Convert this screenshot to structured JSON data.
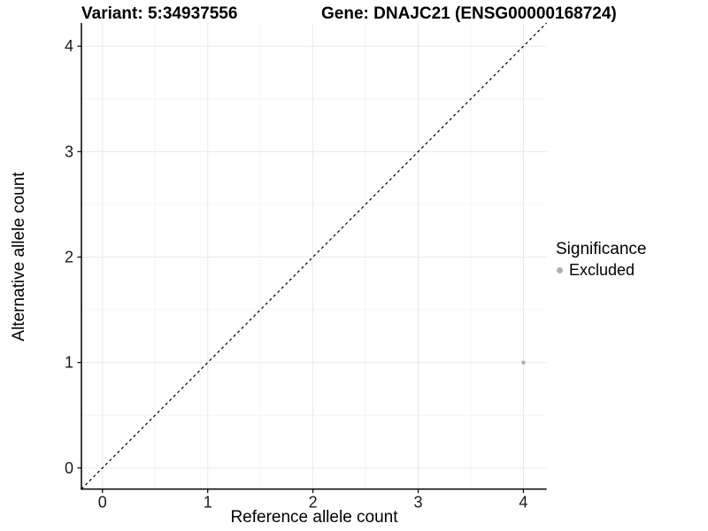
{
  "chart_data": {
    "type": "scatter",
    "title_left": "Variant: 5:34937556",
    "title_right": "Gene: DNAJC21 (ENSG00000168724)",
    "xlabel": "Reference allele count",
    "ylabel": "Alternative allele count",
    "xlim": [
      -0.2,
      4.22
    ],
    "ylim": [
      -0.2,
      4.22
    ],
    "xticks": [
      0,
      1,
      2,
      3,
      4
    ],
    "yticks": [
      0,
      1,
      2,
      3,
      4
    ],
    "minor_xticks": [
      0.5,
      1.5,
      2.5,
      3.5
    ],
    "minor_yticks": [
      0.5,
      1.5,
      2.5,
      3.5
    ],
    "grid": {
      "major_color": "#e9e9e9",
      "minor_color": "#f5f5f5",
      "show": true
    },
    "axis_color": "#000000",
    "tick_label_color": "#1a1a1a",
    "identity_line": {
      "type": "dashed",
      "color": "#000000",
      "from": [
        -0.2,
        -0.2
      ],
      "to": [
        4.22,
        4.22
      ]
    },
    "series": [
      {
        "name": "Excluded",
        "color": "#aeaeae",
        "point_radius": 2.3,
        "points": [
          [
            4,
            1
          ]
        ]
      }
    ],
    "legend": {
      "title": "Significance",
      "position": "right",
      "items": [
        {
          "label": "Excluded",
          "color": "#aeaeae"
        }
      ]
    }
  }
}
